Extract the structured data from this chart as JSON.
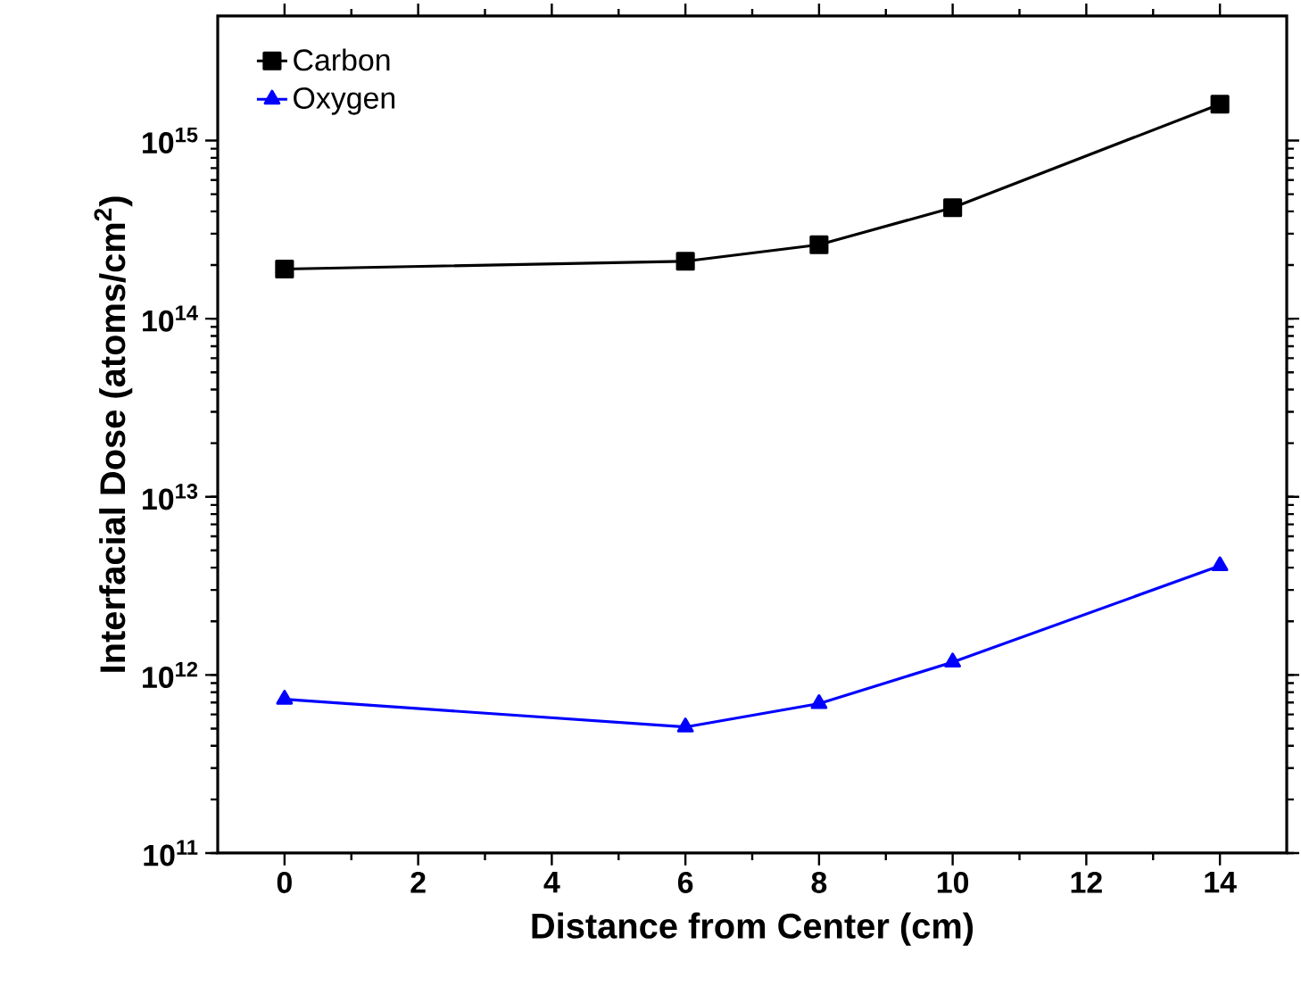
{
  "chart_data": {
    "type": "line",
    "xlabel": "Distance from Center (cm)",
    "ylabel": "Interfacial Dose (atoms/cm$^{2}$)",
    "x": [
      0,
      6,
      8,
      10,
      14
    ],
    "series": [
      {
        "name": "Carbon",
        "color": "#000000",
        "marker": "square",
        "values": [
          190000000000000.0,
          210000000000000.0,
          260000000000000.0,
          420000000000000.0,
          1600000000000000.0
        ]
      },
      {
        "name": "Oxygen",
        "color": "#0000ff",
        "marker": "triangle",
        "values": [
          730000000000.0,
          510000000000.0,
          690000000000.0,
          1180000000000.0,
          4100000000000.0
        ]
      }
    ],
    "log": "y",
    "line_style": "solid",
    "legend": "top left",
    "xlim": [
      -1,
      15
    ],
    "xticks": [
      0,
      2,
      4,
      6,
      8,
      10,
      12,
      14
    ],
    "ylim": [
      100000000000.0,
      5000000000000000.0
    ],
    "yticks": [
      {
        "value": 100000000000.0,
        "label": "10$^{11}$"
      },
      {
        "value": 1000000000000.0,
        "label": "10$^{12}$"
      },
      {
        "value": 10000000000000.0,
        "label": "10$^{13}$"
      },
      {
        "value": 100000000000000.0,
        "label": "10$^{14}$"
      },
      {
        "value": 1000000000000000.0,
        "label": "10$^{15}$"
      }
    ]
  }
}
